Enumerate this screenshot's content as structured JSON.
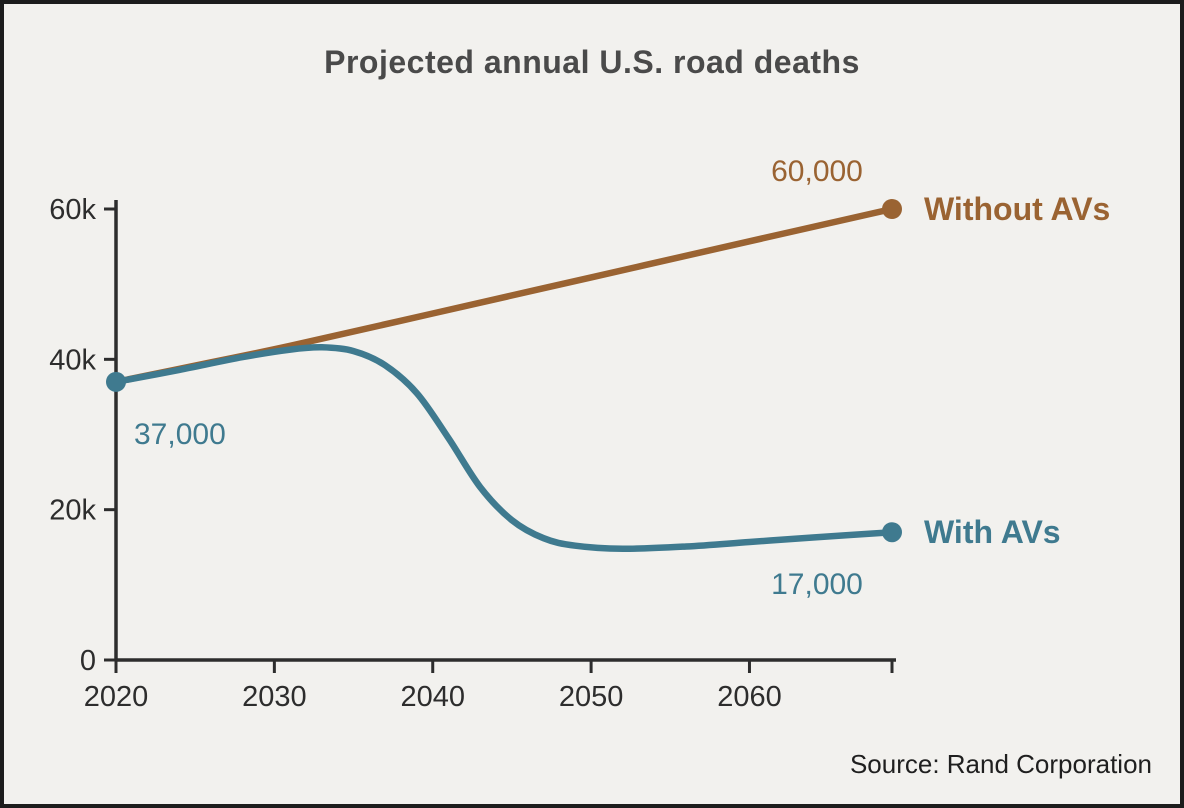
{
  "title": "Projected annual U.S. road deaths",
  "source": "Source: Rand Corporation",
  "colors": {
    "background": "#f2f1ee",
    "frame": "#1c1c1c",
    "title": "#4a4a4a",
    "axis": "#2d2d2d",
    "without_avs": "#9a6332",
    "with_avs": "#3f7a8f"
  },
  "chart_data": {
    "type": "line",
    "title": "Projected annual U.S. road deaths",
    "xlabel": "",
    "ylabel": "",
    "grid": false,
    "legend_position": "end-of-line",
    "x_domain": [
      2020,
      2069
    ],
    "y_domain": [
      0,
      60000
    ],
    "x_ticks": [
      {
        "value": 2020,
        "label": "2020"
      },
      {
        "value": 2030,
        "label": "2030"
      },
      {
        "value": 2040,
        "label": "2040"
      },
      {
        "value": 2050,
        "label": "2050"
      },
      {
        "value": 2060,
        "label": "2060"
      },
      {
        "value": 2069,
        "label": ""
      }
    ],
    "y_ticks": [
      {
        "value": 0,
        "label": "0"
      },
      {
        "value": 20000,
        "label": "20k"
      },
      {
        "value": 40000,
        "label": "40k"
      },
      {
        "value": 60000,
        "label": "60k"
      }
    ],
    "series": [
      {
        "name": "Without AVs",
        "color": "#9a6332",
        "points": [
          [
            2020,
            37000
          ],
          [
            2026,
            39600
          ],
          [
            2031,
            41800
          ],
          [
            2040,
            46100
          ],
          [
            2050,
            50900
          ],
          [
            2060,
            55700
          ],
          [
            2069,
            60000
          ]
        ],
        "end_value": 60000,
        "end_value_label": "60,000",
        "end_label_placement": "above",
        "line_label": "Without AVs",
        "show_start_dot": false
      },
      {
        "name": "With AVs",
        "color": "#3f7a8f",
        "points": [
          [
            2020,
            37000
          ],
          [
            2024,
            38600
          ],
          [
            2028,
            40300
          ],
          [
            2031,
            41300
          ],
          [
            2033,
            41600
          ],
          [
            2035,
            41100
          ],
          [
            2037,
            39200
          ],
          [
            2039,
            35500
          ],
          [
            2041,
            29500
          ],
          [
            2043,
            23000
          ],
          [
            2045,
            18600
          ],
          [
            2047,
            16200
          ],
          [
            2049,
            15200
          ],
          [
            2052,
            14800
          ],
          [
            2056,
            15100
          ],
          [
            2060,
            15700
          ],
          [
            2064,
            16300
          ],
          [
            2069,
            17000
          ]
        ],
        "end_value": 17000,
        "end_value_label": "17,000",
        "end_label_placement": "below",
        "line_label": "With AVs",
        "show_start_dot": true,
        "start_value_label": "37,000"
      }
    ]
  }
}
